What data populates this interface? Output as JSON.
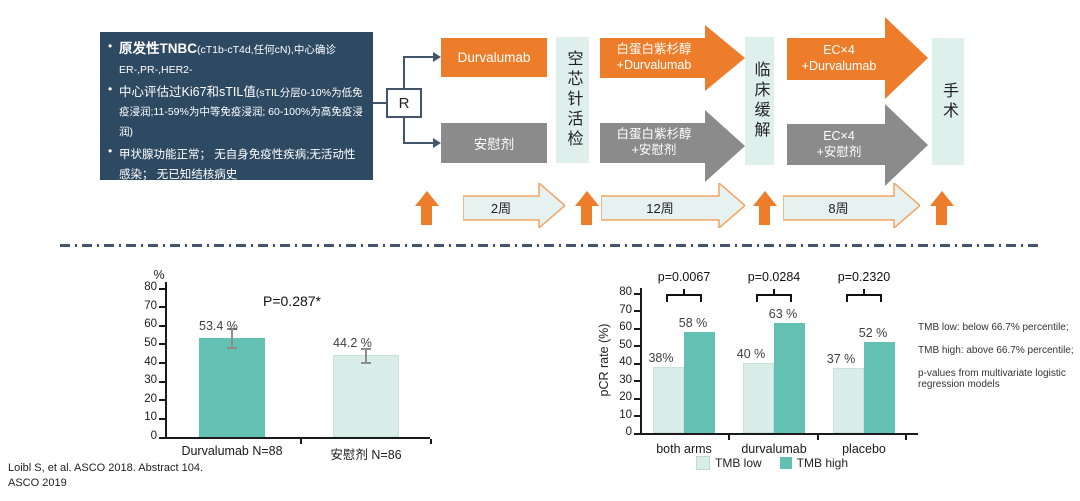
{
  "colors": {
    "accent_orange": "#ED7C2B",
    "neutral_gray": "#8B8B8B",
    "dark_navy": "#2E4A63",
    "slate_line": "#44546A",
    "mint_box": "#DFF0EC",
    "timeline_fill": "#E6F2EF",
    "timeline_stroke": "#F2A564",
    "teal_dark": "#62C1B3",
    "teal_light": "#D9EDE9"
  },
  "schema": {
    "criteria": {
      "bullet1_main": "原发性TNBC",
      "bullet1_rest": "(cT1b-cT4d,任何cN),中心确诊ER-,PR-,HER2-",
      "bullet2_main": "中心评估过Ki67和sTIL值",
      "bullet2_rest": "(sTIL分层0-10%为低免疫浸润;11-59%为中等免疫浸润; 60-100%为高免疫浸润)",
      "bullet3": "甲状腺功能正常； 无自身免疫性疾病;无活动性感染； 无已知结核病史"
    },
    "randomization_label": "R",
    "arm1_label": "Durvalumab",
    "arm2_label": "安慰剂",
    "biopsy_label": "空芯针活检",
    "phase1_arm1_line1": "白蛋白紫杉醇",
    "phase1_arm1_line2": "+Durvalumab",
    "phase1_arm2_line1": "白蛋白紫杉醇",
    "phase1_arm2_line2": "+安慰剂",
    "response_label": "临床缓解",
    "phase2_arm1_line1": "EC×4",
    "phase2_arm1_line2": "+Durvalumab",
    "phase2_arm2_line1": "EC×4",
    "phase2_arm2_line2": "+安慰剂",
    "surgery_label": "手术",
    "timeline": {
      "week1": "2周",
      "week2": "12周",
      "week3": "8周"
    }
  },
  "chart_data": [
    {
      "type": "bar",
      "title": "",
      "unit_label": "%",
      "xlabel": "",
      "ylabel": "%",
      "ylim": [
        0,
        80
      ],
      "ytick_step": 10,
      "grid": false,
      "p_value_label": "P=0.287*",
      "categories": [
        "Durvalumab N=88",
        "安慰剂 N=86"
      ],
      "values": [
        53.4,
        44.2
      ],
      "value_labels": [
        "53.4 %",
        "44.2 %"
      ],
      "error_bars": [
        {
          "upper": 58.5,
          "lower": 47.8
        },
        {
          "upper": 47.8,
          "lower": 39.7
        }
      ],
      "bar_colors": [
        "#62C1B3",
        "#D9EDE9"
      ]
    },
    {
      "type": "bar",
      "title": "",
      "xlabel": "",
      "ylabel": "pCR rate (%)",
      "ylim": [
        0,
        80
      ],
      "ytick_step": 10,
      "grid": false,
      "categories": [
        "both arms",
        "durvalumab",
        "placebo"
      ],
      "series": [
        {
          "name": "TMB low",
          "values": [
            38,
            40,
            37
          ],
          "color": "#D9EDE9"
        },
        {
          "name": "TMB high",
          "values": [
            58,
            63,
            52
          ],
          "color": "#62C1B3"
        }
      ],
      "value_labels": {
        "low": [
          "38%",
          "40 %",
          "37 %"
        ],
        "high": [
          "58 %",
          "63 %",
          "52 %"
        ]
      },
      "p_values": [
        "p=0.0067",
        "p=0.0284",
        "p=0.2320"
      ],
      "legend": [
        "TMB low",
        "TMB high"
      ],
      "legend_position": "bottom",
      "notes": [
        "TMB low: below 66.7% percentile;",
        "TMB high: above 66.7% percentile;",
        "p-values from multivariate logistic regression models"
      ]
    }
  ],
  "footer": {
    "line1": "Loibl S, et al. ASCO 2018. Abstract 104.",
    "line2": "ASCO 2019"
  }
}
